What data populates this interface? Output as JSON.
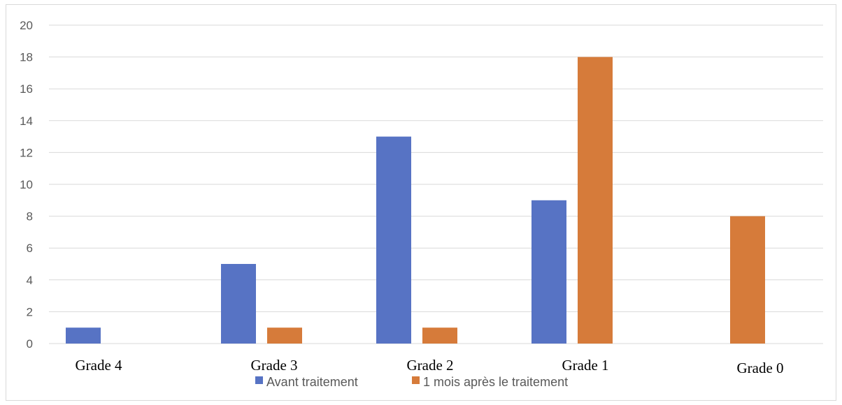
{
  "chart_data": {
    "type": "bar",
    "categories": [
      "Grade 4",
      "Grade 3",
      "Grade 2",
      "Grade 1",
      "Grade 0"
    ],
    "series": [
      {
        "name": "Avant traitement",
        "values": [
          1,
          5,
          13,
          9,
          0
        ],
        "color": "#5773c4"
      },
      {
        "name": "1 mois après le traitement",
        "values": [
          0,
          1,
          1,
          18,
          8
        ],
        "color": "#d67b3a"
      }
    ],
    "yticks": [
      "0",
      "2",
      "4",
      "6",
      "8",
      "10",
      "12",
      "14",
      "16",
      "18",
      "20"
    ],
    "ylim": [
      0,
      20
    ],
    "grid": true,
    "legend_position": "bottom",
    "title": "",
    "xlabel": "",
    "ylabel": ""
  }
}
